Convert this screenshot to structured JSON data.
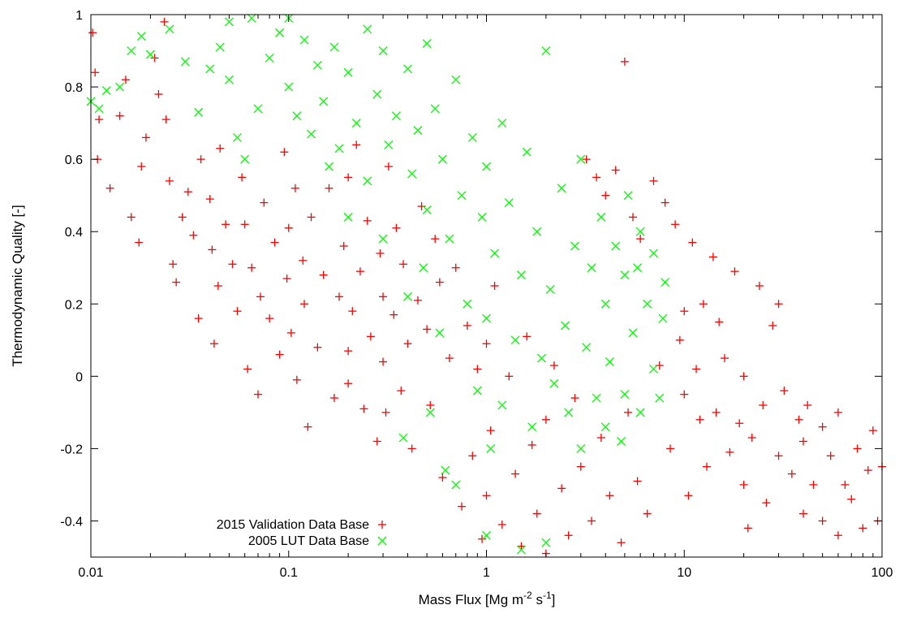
{
  "chart_data": {
    "type": "scatter",
    "title": "",
    "xlabel": "Mass Flux [Mg m-2 s-1]",
    "xlabel_parts": {
      "base": "Mass Flux [Mg m",
      "exp1": "-2",
      "mid": " s",
      "exp2": "-1",
      "end": "]"
    },
    "ylabel": "Thermodynamic Quality [-]",
    "xscale": "log",
    "xlim": [
      0.01,
      100
    ],
    "ylim": [
      -0.5,
      1
    ],
    "x_ticks": [
      "0.01",
      "0.1",
      "1",
      "10",
      "100"
    ],
    "y_ticks": [
      "-0.4",
      "-0.2",
      "0",
      "0.2",
      "0.4",
      "0.6",
      "0.8",
      "1"
    ],
    "grid": false,
    "legend_position": "bottom-left",
    "series": [
      {
        "name": "2015 Validation Data Base",
        "marker": "+",
        "color": "#ff0000",
        "points": [
          [
            0.0102,
            0.95
          ],
          [
            0.0105,
            0.84
          ],
          [
            0.011,
            0.71
          ],
          [
            0.0108,
            0.6
          ],
          [
            0.0125,
            0.52
          ],
          [
            0.014,
            0.72
          ],
          [
            0.015,
            0.82
          ],
          [
            0.016,
            0.44
          ],
          [
            0.0175,
            0.37
          ],
          [
            0.018,
            0.58
          ],
          [
            0.019,
            0.66
          ],
          [
            0.021,
            0.88
          ],
          [
            0.022,
            0.78
          ],
          [
            0.0235,
            0.98
          ],
          [
            0.024,
            0.71
          ],
          [
            0.025,
            0.54
          ],
          [
            0.026,
            0.31
          ],
          [
            0.027,
            0.26
          ],
          [
            0.029,
            0.44
          ],
          [
            0.031,
            0.51
          ],
          [
            0.033,
            0.39
          ],
          [
            0.035,
            0.16
          ],
          [
            0.036,
            0.6
          ],
          [
            0.04,
            0.49
          ],
          [
            0.041,
            0.35
          ],
          [
            0.042,
            0.09
          ],
          [
            0.044,
            0.25
          ],
          [
            0.045,
            0.63
          ],
          [
            0.048,
            0.42
          ],
          [
            0.052,
            0.31
          ],
          [
            0.055,
            0.18
          ],
          [
            0.058,
            0.55
          ],
          [
            0.06,
            0.42
          ],
          [
            0.062,
            0.02
          ],
          [
            0.065,
            0.3
          ],
          [
            0.07,
            -0.05
          ],
          [
            0.072,
            0.22
          ],
          [
            0.075,
            0.48
          ],
          [
            0.08,
            0.16
          ],
          [
            0.085,
            0.37
          ],
          [
            0.09,
            0.06
          ],
          [
            0.095,
            0.62
          ],
          [
            0.098,
            0.27
          ],
          [
            0.1,
            0.41
          ],
          [
            0.103,
            0.12
          ],
          [
            0.108,
            0.52
          ],
          [
            0.11,
            -0.01
          ],
          [
            0.118,
            0.32
          ],
          [
            0.12,
            0.2
          ],
          [
            0.125,
            -0.14
          ],
          [
            0.13,
            0.44
          ],
          [
            0.14,
            0.08
          ],
          [
            0.15,
            0.28
          ],
          [
            0.16,
            0.52
          ],
          [
            0.17,
            -0.06
          ],
          [
            0.18,
            0.22
          ],
          [
            0.19,
            0.36
          ],
          [
            0.2,
            0.07
          ],
          [
            0.2,
            -0.02
          ],
          [
            0.2,
            0.55
          ],
          [
            0.21,
            0.18
          ],
          [
            0.22,
            0.64
          ],
          [
            0.23,
            0.29
          ],
          [
            0.24,
            -0.09
          ],
          [
            0.25,
            0.43
          ],
          [
            0.26,
            0.11
          ],
          [
            0.28,
            -0.18
          ],
          [
            0.29,
            0.34
          ],
          [
            0.3,
            0.22
          ],
          [
            0.3,
            0.04
          ],
          [
            0.31,
            -0.1
          ],
          [
            0.32,
            0.58
          ],
          [
            0.34,
            0.17
          ],
          [
            0.35,
            0.41
          ],
          [
            0.37,
            -0.04
          ],
          [
            0.38,
            0.31
          ],
          [
            0.4,
            0.09
          ],
          [
            0.42,
            -0.2
          ],
          [
            0.45,
            0.21
          ],
          [
            0.47,
            0.47
          ],
          [
            0.5,
            0.13
          ],
          [
            0.52,
            -0.08
          ],
          [
            0.55,
            0.38
          ],
          [
            0.58,
            0.26
          ],
          [
            0.6,
            -0.28
          ],
          [
            0.65,
            0.05
          ],
          [
            0.7,
            0.3
          ],
          [
            0.75,
            -0.36
          ],
          [
            0.8,
            0.14
          ],
          [
            0.85,
            -0.22
          ],
          [
            0.9,
            0.02
          ],
          [
            0.95,
            -0.45
          ],
          [
            1.0,
            -0.33
          ],
          [
            1.0,
            0.09
          ],
          [
            1.05,
            -0.15
          ],
          [
            1.1,
            0.25
          ],
          [
            1.2,
            -0.41
          ],
          [
            1.3,
            0.0
          ],
          [
            1.4,
            -0.27
          ],
          [
            1.5,
            -0.47
          ],
          [
            1.6,
            0.11
          ],
          [
            1.7,
            -0.19
          ],
          [
            1.8,
            -0.38
          ],
          [
            2.0,
            -0.49
          ],
          [
            2.0,
            -0.12
          ],
          [
            2.2,
            0.03
          ],
          [
            2.4,
            -0.31
          ],
          [
            2.6,
            -0.44
          ],
          [
            2.8,
            -0.06
          ],
          [
            3.0,
            -0.25
          ],
          [
            3.2,
            0.6
          ],
          [
            3.4,
            -0.4
          ],
          [
            3.6,
            0.55
          ],
          [
            3.8,
            -0.17
          ],
          [
            4.0,
            0.5
          ],
          [
            4.2,
            -0.33
          ],
          [
            4.5,
            0.57
          ],
          [
            4.8,
            -0.46
          ],
          [
            5.0,
            0.87
          ],
          [
            5.2,
            -0.1
          ],
          [
            5.5,
            0.44
          ],
          [
            5.8,
            -0.29
          ],
          [
            6.0,
            0.38
          ],
          [
            6.5,
            -0.38
          ],
          [
            7.0,
            0.54
          ],
          [
            7.5,
            0.03
          ],
          [
            8.0,
            0.48
          ],
          [
            8.5,
            -0.2
          ],
          [
            9.0,
            0.42
          ],
          [
            9.5,
            0.1
          ],
          [
            10.0,
            -0.05
          ],
          [
            10.0,
            0.18
          ],
          [
            10.5,
            -0.33
          ],
          [
            11.0,
            0.37
          ],
          [
            11.5,
            0.02
          ],
          [
            12.0,
            -0.12
          ],
          [
            12.5,
            0.2
          ],
          [
            13.0,
            -0.25
          ],
          [
            14.0,
            0.33
          ],
          [
            14.5,
            -0.1
          ],
          [
            15.0,
            0.15
          ],
          [
            16.0,
            0.05
          ],
          [
            17.0,
            -0.21
          ],
          [
            18.0,
            0.29
          ],
          [
            19.0,
            -0.13
          ],
          [
            20.0,
            -0.3
          ],
          [
            20.0,
            0.0
          ],
          [
            21.0,
            -0.42
          ],
          [
            22.0,
            -0.17
          ],
          [
            24.0,
            0.25
          ],
          [
            25.0,
            -0.08
          ],
          [
            26.0,
            -0.35
          ],
          [
            28.0,
            0.14
          ],
          [
            30.0,
            -0.22
          ],
          [
            30.0,
            0.2
          ],
          [
            32.0,
            -0.04
          ],
          [
            35.0,
            -0.27
          ],
          [
            38.0,
            -0.12
          ],
          [
            40.0,
            -0.18
          ],
          [
            40.0,
            -0.38
          ],
          [
            42.0,
            -0.08
          ],
          [
            45.0,
            -0.3
          ],
          [
            50.0,
            -0.14
          ],
          [
            50.0,
            -0.4
          ],
          [
            55.0,
            -0.22
          ],
          [
            60.0,
            -0.44
          ],
          [
            60.0,
            -0.1
          ],
          [
            65.0,
            -0.3
          ],
          [
            70.0,
            -0.34
          ],
          [
            75.0,
            -0.2
          ],
          [
            80.0,
            -0.42
          ],
          [
            85.0,
            -0.26
          ],
          [
            90.0,
            -0.15
          ],
          [
            95.0,
            -0.4
          ],
          [
            100.0,
            -0.25
          ]
        ]
      },
      {
        "name": "2005 LUT Data Base",
        "marker": "x",
        "color": "#00ff00",
        "points": [
          [
            0.01,
            0.76
          ],
          [
            0.011,
            0.74
          ],
          [
            0.012,
            0.79
          ],
          [
            0.014,
            0.8
          ],
          [
            0.016,
            0.9
          ],
          [
            0.018,
            0.94
          ],
          [
            0.02,
            0.89
          ],
          [
            0.025,
            0.96
          ],
          [
            0.03,
            0.87
          ],
          [
            0.035,
            0.73
          ],
          [
            0.04,
            0.85
          ],
          [
            0.045,
            0.91
          ],
          [
            0.05,
            0.98
          ],
          [
            0.05,
            0.82
          ],
          [
            0.055,
            0.66
          ],
          [
            0.06,
            0.6
          ],
          [
            0.065,
            0.99
          ],
          [
            0.07,
            0.74
          ],
          [
            0.08,
            0.88
          ],
          [
            0.09,
            0.95
          ],
          [
            0.1,
            0.99
          ],
          [
            0.1,
            0.8
          ],
          [
            0.11,
            0.72
          ],
          [
            0.12,
            0.93
          ],
          [
            0.13,
            0.67
          ],
          [
            0.14,
            0.86
          ],
          [
            0.15,
            0.76
          ],
          [
            0.16,
            0.58
          ],
          [
            0.17,
            0.91
          ],
          [
            0.18,
            0.63
          ],
          [
            0.2,
            0.84
          ],
          [
            0.2,
            0.44
          ],
          [
            0.22,
            0.7
          ],
          [
            0.25,
            0.96
          ],
          [
            0.25,
            0.54
          ],
          [
            0.28,
            0.78
          ],
          [
            0.3,
            0.9
          ],
          [
            0.3,
            0.38
          ],
          [
            0.32,
            0.64
          ],
          [
            0.35,
            0.72
          ],
          [
            0.38,
            -0.17
          ],
          [
            0.4,
            0.85
          ],
          [
            0.4,
            0.22
          ],
          [
            0.42,
            0.56
          ],
          [
            0.45,
            0.68
          ],
          [
            0.48,
            0.3
          ],
          [
            0.5,
            0.92
          ],
          [
            0.5,
            0.46
          ],
          [
            0.52,
            -0.1
          ],
          [
            0.55,
            0.74
          ],
          [
            0.58,
            0.12
          ],
          [
            0.6,
            0.6
          ],
          [
            0.62,
            -0.26
          ],
          [
            0.65,
            0.38
          ],
          [
            0.7,
            0.82
          ],
          [
            0.7,
            -0.3
          ],
          [
            0.75,
            0.5
          ],
          [
            0.8,
            0.2
          ],
          [
            0.85,
            0.66
          ],
          [
            0.9,
            -0.04
          ],
          [
            0.95,
            0.44
          ],
          [
            1.0,
            -0.44
          ],
          [
            1.0,
            0.58
          ],
          [
            1.0,
            0.16
          ],
          [
            1.05,
            -0.2
          ],
          [
            1.1,
            0.34
          ],
          [
            1.2,
            0.7
          ],
          [
            1.2,
            -0.08
          ],
          [
            1.3,
            0.48
          ],
          [
            1.4,
            0.1
          ],
          [
            1.5,
            -0.48
          ],
          [
            1.5,
            0.28
          ],
          [
            1.6,
            0.62
          ],
          [
            1.7,
            -0.14
          ],
          [
            1.8,
            0.4
          ],
          [
            1.9,
            0.05
          ],
          [
            2.0,
            -0.46
          ],
          [
            2.0,
            0.9
          ],
          [
            2.1,
            0.24
          ],
          [
            2.2,
            -0.02
          ],
          [
            2.4,
            0.52
          ],
          [
            2.5,
            0.14
          ],
          [
            2.6,
            -0.1
          ],
          [
            2.8,
            0.36
          ],
          [
            3.0,
            -0.2
          ],
          [
            3.0,
            0.6
          ],
          [
            3.2,
            0.08
          ],
          [
            3.4,
            0.3
          ],
          [
            3.6,
            -0.06
          ],
          [
            3.8,
            0.44
          ],
          [
            4.0,
            -0.14
          ],
          [
            4.0,
            0.2
          ],
          [
            4.2,
            0.04
          ],
          [
            4.5,
            0.36
          ],
          [
            4.8,
            -0.18
          ],
          [
            5.0,
            0.28
          ],
          [
            5.0,
            -0.05
          ],
          [
            5.2,
            0.5
          ],
          [
            5.5,
            0.12
          ],
          [
            5.8,
            0.3
          ],
          [
            6.0,
            -0.1
          ],
          [
            6.0,
            0.4
          ],
          [
            6.5,
            0.2
          ],
          [
            7.0,
            0.02
          ],
          [
            7.0,
            0.34
          ],
          [
            7.5,
            -0.06
          ],
          [
            7.8,
            0.16
          ],
          [
            8.0,
            0.26
          ]
        ]
      }
    ]
  }
}
